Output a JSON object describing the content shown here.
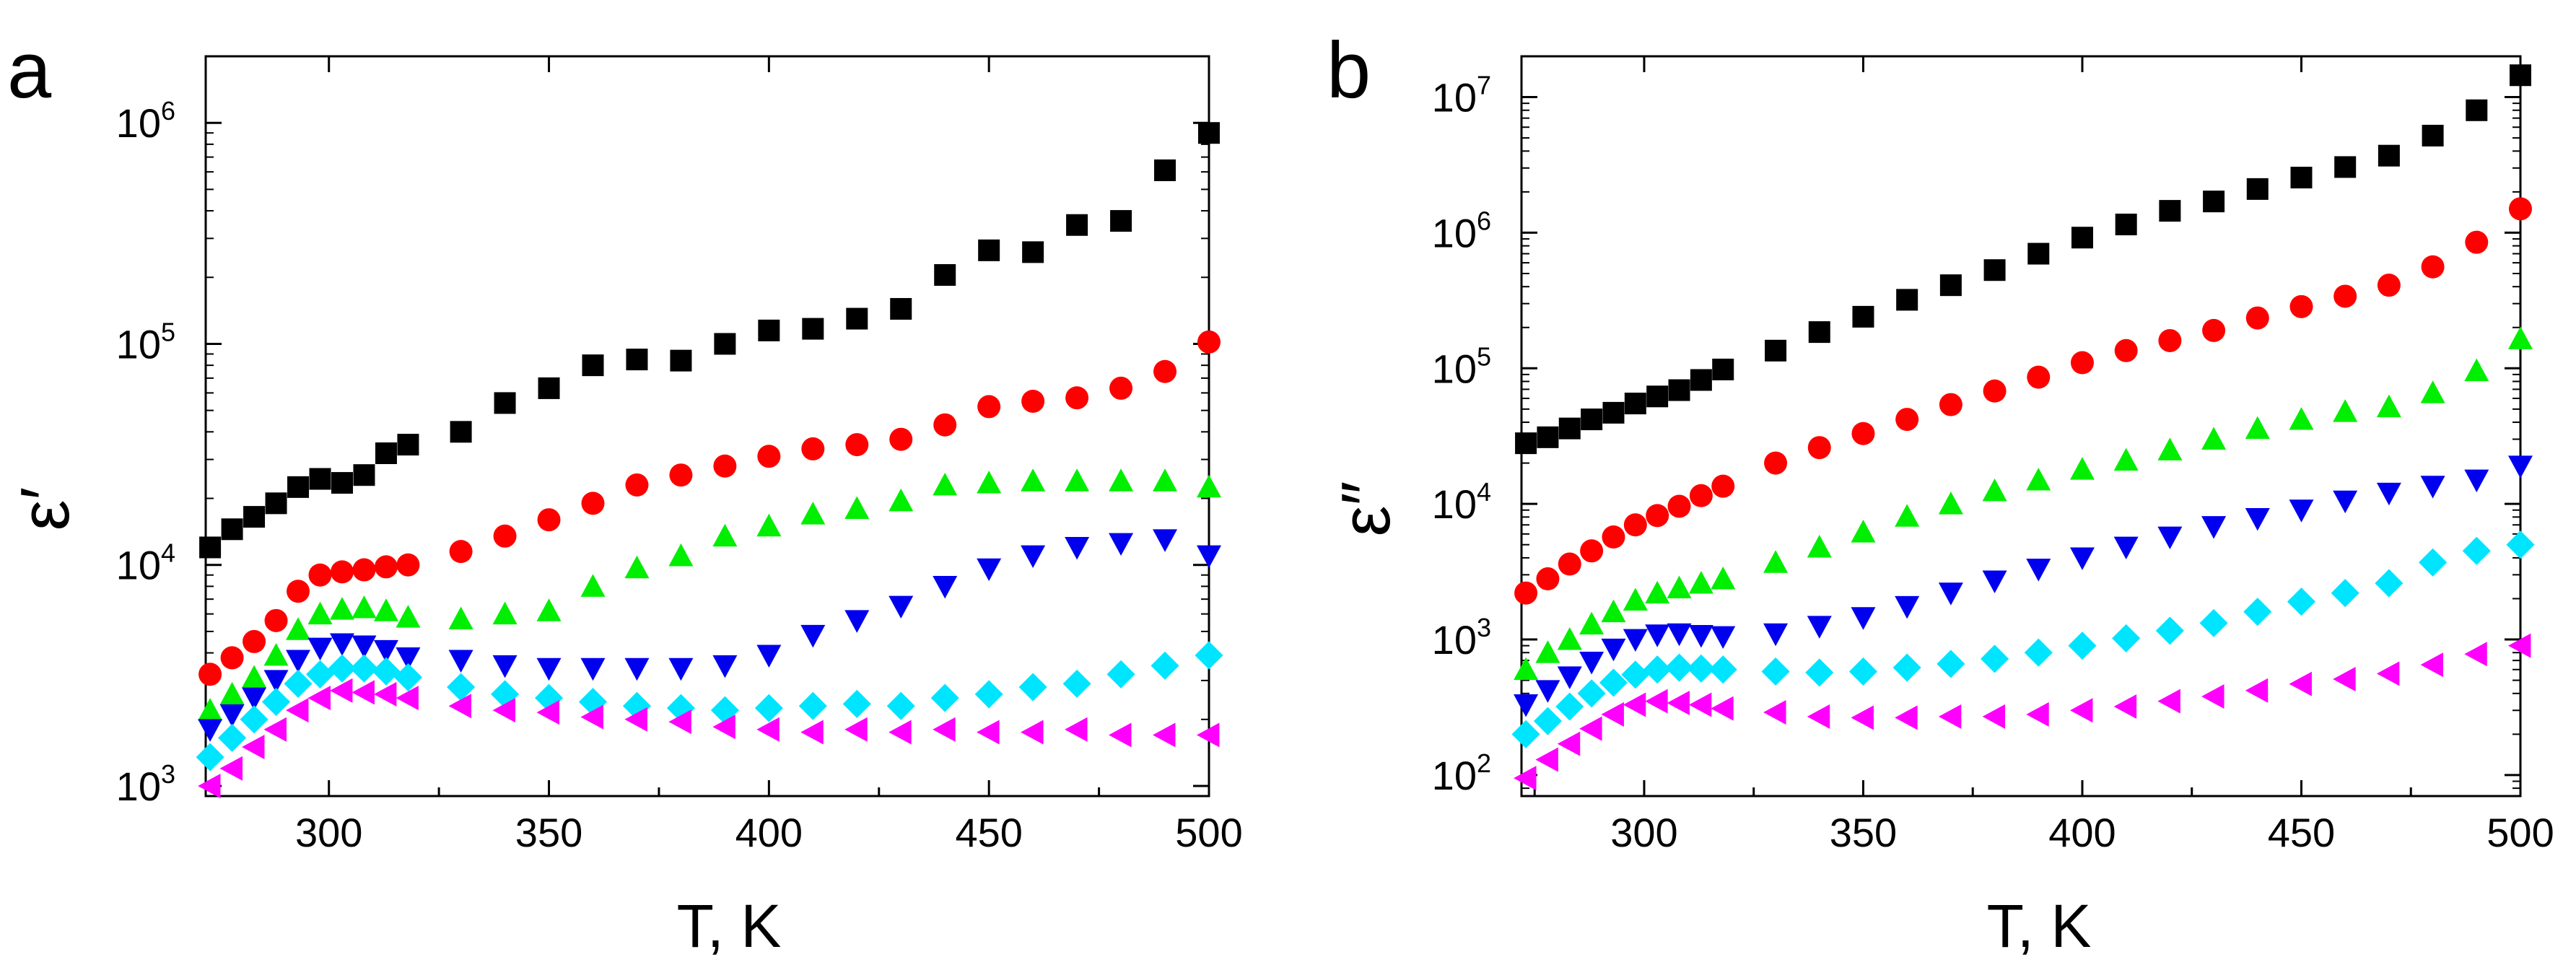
{
  "colors": {
    "black": "#000000",
    "red": "#ff0000",
    "green": "#00ee00",
    "blue": "#0000ee",
    "cyan": "#00e5ff",
    "magenta": "#ff00ff"
  },
  "chart_data": [
    {
      "type": "scatter",
      "panel_label": "a",
      "ylabel": "ε′",
      "xlabel": "T, K",
      "yscale": "log",
      "xlim": [
        272,
        500
      ],
      "ylim": [
        900,
        2000000
      ],
      "xticks": [
        300,
        350,
        400,
        450,
        500
      ],
      "xtick_labels": [
        "300",
        "350",
        "400",
        "450",
        "500"
      ],
      "yticks": [
        {
          "value": 1000,
          "base": "10",
          "exp": "3"
        },
        {
          "value": 10000,
          "base": "10",
          "exp": "4"
        },
        {
          "value": 100000,
          "base": "10",
          "exp": "5"
        },
        {
          "value": 1000000,
          "base": "10",
          "exp": "6"
        }
      ],
      "series": [
        {
          "name": "black squares",
          "marker": "square",
          "color": "#000000",
          "x": [
            273,
            278,
            283,
            288,
            293,
            298,
            303,
            308,
            313,
            318,
            330,
            340,
            350,
            360,
            370,
            380,
            390,
            400,
            410,
            420,
            430,
            440,
            450,
            460,
            470,
            480,
            490,
            500
          ],
          "y": [
            12000,
            14500,
            16500,
            19000,
            22500,
            24500,
            23500,
            25500,
            32000,
            35000,
            40000,
            54000,
            63000,
            80000,
            85000,
            84000,
            100000,
            115000,
            117000,
            130000,
            144000,
            205000,
            265000,
            260000,
            345000,
            360000,
            610000,
            900000
          ]
        },
        {
          "name": "red circles",
          "marker": "circle",
          "color": "#ff0000",
          "x": [
            273,
            278,
            283,
            288,
            293,
            298,
            303,
            308,
            313,
            318,
            330,
            340,
            350,
            360,
            370,
            380,
            390,
            400,
            410,
            420,
            430,
            440,
            450,
            460,
            470,
            480,
            490,
            500
          ],
          "y": [
            3200,
            3800,
            4500,
            5600,
            7600,
            9000,
            9300,
            9500,
            9800,
            10000,
            11500,
            13500,
            16000,
            19000,
            23000,
            25500,
            28000,
            31000,
            33500,
            35000,
            37000,
            43000,
            52000,
            55000,
            57000,
            63000,
            75000,
            102000
          ]
        },
        {
          "name": "green triangles",
          "marker": "triangle-up",
          "color": "#00ee00",
          "x": [
            273,
            278,
            283,
            288,
            293,
            298,
            303,
            308,
            313,
            318,
            330,
            340,
            350,
            360,
            370,
            380,
            390,
            400,
            410,
            420,
            430,
            440,
            450,
            460,
            470,
            480,
            490,
            500
          ],
          "y": [
            2200,
            2600,
            3100,
            3900,
            5100,
            6000,
            6300,
            6400,
            6200,
            5800,
            5700,
            6000,
            6200,
            8000,
            9700,
            11000,
            13500,
            15000,
            17000,
            18000,
            19500,
            23000,
            23500,
            24000,
            24000,
            24000,
            24000,
            22500
          ]
        },
        {
          "name": "blue triangles",
          "marker": "triangle-down",
          "color": "#0000ee",
          "x": [
            273,
            278,
            283,
            288,
            293,
            298,
            303,
            308,
            313,
            318,
            330,
            340,
            350,
            360,
            370,
            380,
            390,
            400,
            410,
            420,
            430,
            440,
            450,
            460,
            470,
            480,
            490,
            500
          ],
          "y": [
            1800,
            2100,
            2500,
            3000,
            3700,
            4200,
            4400,
            4300,
            4100,
            3800,
            3700,
            3500,
            3400,
            3400,
            3400,
            3400,
            3500,
            3900,
            4800,
            5600,
            6500,
            8000,
            9600,
            11000,
            12000,
            12500,
            13000,
            11000
          ]
        },
        {
          "name": "cyan diamonds",
          "marker": "diamond",
          "color": "#00e5ff",
          "x": [
            273,
            278,
            283,
            288,
            293,
            298,
            303,
            308,
            313,
            318,
            330,
            340,
            350,
            360,
            370,
            380,
            390,
            400,
            410,
            420,
            430,
            440,
            450,
            460,
            470,
            480,
            490,
            500
          ],
          "y": [
            1350,
            1650,
            2000,
            2400,
            2900,
            3200,
            3400,
            3400,
            3300,
            3100,
            2800,
            2600,
            2500,
            2400,
            2300,
            2250,
            2200,
            2250,
            2300,
            2350,
            2300,
            2500,
            2600,
            2800,
            2900,
            3200,
            3500,
            3900
          ]
        },
        {
          "name": "magenta triangles",
          "marker": "triangle-left",
          "color": "#ff00ff",
          "x": [
            273,
            278,
            283,
            288,
            293,
            298,
            303,
            308,
            313,
            318,
            330,
            340,
            350,
            360,
            370,
            380,
            390,
            400,
            410,
            420,
            430,
            440,
            450,
            460,
            470,
            480,
            490,
            500
          ],
          "y": [
            1000,
            1200,
            1500,
            1800,
            2200,
            2500,
            2700,
            2650,
            2600,
            2500,
            2300,
            2200,
            2150,
            2050,
            2000,
            1950,
            1850,
            1800,
            1750,
            1800,
            1750,
            1800,
            1750,
            1750,
            1800,
            1700,
            1700,
            1700
          ]
        }
      ]
    },
    {
      "type": "scatter",
      "panel_label": "b",
      "ylabel": "ε″",
      "xlabel": "T, K",
      "yscale": "log",
      "xlim": [
        272,
        500
      ],
      "ylim": [
        70,
        20000000
      ],
      "xticks": [
        300,
        350,
        400,
        450,
        500
      ],
      "xtick_labels": [
        "300",
        "350",
        "400",
        "450",
        "500"
      ],
      "yticks": [
        {
          "value": 100,
          "base": "10",
          "exp": "2"
        },
        {
          "value": 1000,
          "base": "10",
          "exp": "3"
        },
        {
          "value": 10000,
          "base": "10",
          "exp": "4"
        },
        {
          "value": 100000,
          "base": "10",
          "exp": "5"
        },
        {
          "value": 1000000,
          "base": "10",
          "exp": "6"
        },
        {
          "value": 10000000,
          "base": "10",
          "exp": "7"
        }
      ],
      "series": [
        {
          "name": "black squares",
          "marker": "square",
          "color": "#000000",
          "x": [
            273,
            278,
            283,
            288,
            293,
            298,
            303,
            308,
            313,
            318,
            330,
            340,
            350,
            360,
            370,
            380,
            390,
            400,
            410,
            420,
            430,
            440,
            450,
            460,
            470,
            480,
            490,
            500
          ],
          "y": [
            28000,
            31000,
            36000,
            42000,
            47000,
            55000,
            62000,
            69000,
            82000,
            98000,
            135000,
            185000,
            240000,
            320000,
            410000,
            530000,
            700000,
            920000,
            1150000,
            1450000,
            1700000,
            2100000,
            2550000,
            3050000,
            3700000,
            5200000,
            8000000,
            14500000
          ]
        },
        {
          "name": "red circles",
          "marker": "circle",
          "color": "#ff0000",
          "x": [
            273,
            278,
            283,
            288,
            293,
            298,
            303,
            308,
            313,
            318,
            330,
            340,
            350,
            360,
            370,
            380,
            390,
            400,
            410,
            420,
            430,
            440,
            450,
            460,
            470,
            480,
            490,
            500
          ],
          "y": [
            2200,
            2800,
            3600,
            4500,
            5700,
            7000,
            8200,
            9600,
            11500,
            13500,
            20000,
            26000,
            33000,
            42000,
            54000,
            68000,
            86000,
            110000,
            135000,
            160000,
            190000,
            235000,
            285000,
            340000,
            410000,
            560000,
            850000,
            1500000
          ]
        },
        {
          "name": "green triangles",
          "marker": "triangle-up",
          "color": "#00ee00",
          "x": [
            273,
            278,
            283,
            288,
            293,
            298,
            303,
            308,
            313,
            318,
            330,
            340,
            350,
            360,
            370,
            380,
            390,
            400,
            410,
            420,
            430,
            440,
            450,
            460,
            470,
            480,
            490,
            500
          ],
          "y": [
            600,
            800,
            1000,
            1300,
            1600,
            1950,
            2200,
            2400,
            2600,
            2800,
            3700,
            4800,
            6200,
            8100,
            10000,
            12500,
            15000,
            18000,
            21000,
            25000,
            30000,
            36000,
            42000,
            48000,
            52000,
            66000,
            96000,
            165000
          ]
        },
        {
          "name": "blue triangles",
          "marker": "triangle-down",
          "color": "#0000ee",
          "x": [
            273,
            278,
            283,
            288,
            293,
            298,
            303,
            308,
            313,
            318,
            330,
            340,
            350,
            360,
            370,
            380,
            390,
            400,
            410,
            420,
            430,
            440,
            450,
            460,
            470,
            480,
            490,
            500
          ],
          "y": [
            330,
            420,
            530,
            680,
            850,
            1000,
            1080,
            1100,
            1070,
            1050,
            1100,
            1250,
            1450,
            1750,
            2200,
            2700,
            3300,
            4000,
            4800,
            5700,
            6800,
            7800,
            9000,
            10500,
            12000,
            13500,
            15000,
            19000
          ]
        },
        {
          "name": "cyan diamonds",
          "marker": "diamond",
          "color": "#00e5ff",
          "x": [
            273,
            278,
            283,
            288,
            293,
            298,
            303,
            308,
            313,
            318,
            330,
            340,
            350,
            360,
            370,
            380,
            390,
            400,
            410,
            420,
            430,
            440,
            450,
            460,
            470,
            480,
            490,
            500
          ],
          "y": [
            200,
            250,
            320,
            400,
            480,
            550,
            600,
            620,
            610,
            600,
            580,
            570,
            580,
            620,
            660,
            720,
            800,
            900,
            1020,
            1160,
            1320,
            1600,
            1900,
            2200,
            2600,
            3700,
            4500,
            5000
          ]
        },
        {
          "name": "magenta triangles",
          "marker": "triangle-left",
          "color": "#ff00ff",
          "x": [
            273,
            278,
            283,
            288,
            293,
            298,
            303,
            308,
            313,
            318,
            330,
            340,
            350,
            360,
            370,
            380,
            390,
            400,
            410,
            420,
            430,
            440,
            450,
            460,
            470,
            480,
            490,
            500
          ],
          "y": [
            95,
            130,
            170,
            220,
            280,
            330,
            350,
            340,
            330,
            310,
            290,
            270,
            265,
            265,
            270,
            270,
            280,
            300,
            320,
            350,
            380,
            420,
            470,
            510,
            560,
            650,
            780,
            900
          ]
        }
      ]
    }
  ]
}
